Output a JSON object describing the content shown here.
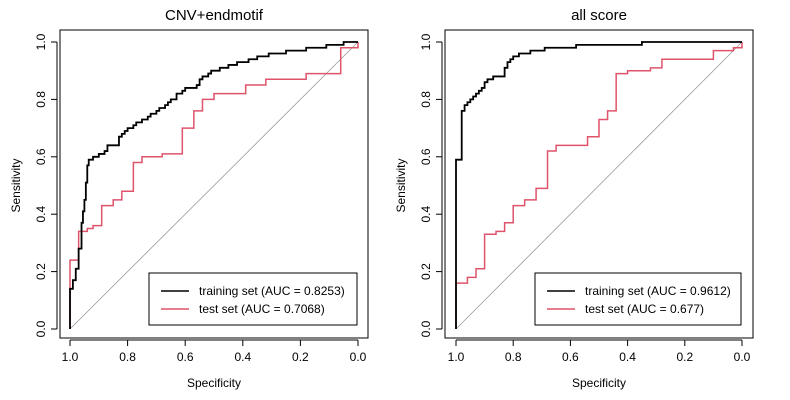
{
  "chart_data": [
    {
      "type": "line",
      "title": "CNV+endmotif",
      "xlabel": "Specificity",
      "ylabel": "Sensitivity",
      "xlim": [
        1.0,
        0.0
      ],
      "ylim": [
        0.0,
        1.0
      ],
      "x_reversed": true,
      "xticks": [
        "1.0",
        "0.8",
        "0.6",
        "0.4",
        "0.2",
        "0.0"
      ],
      "yticks": [
        "0.0",
        "0.2",
        "0.4",
        "0.6",
        "0.8",
        "1.0"
      ],
      "legend_position": "bottom-right",
      "diagonal_reference": true,
      "series": [
        {
          "name": "training set (AUC = 0.8253)",
          "color": "#000000",
          "points": [
            [
              1.0,
              0.0
            ],
            [
              1.0,
              0.14
            ],
            [
              0.99,
              0.14
            ],
            [
              0.99,
              0.17
            ],
            [
              0.98,
              0.17
            ],
            [
              0.98,
              0.21
            ],
            [
              0.97,
              0.21
            ],
            [
              0.97,
              0.28
            ],
            [
              0.96,
              0.28
            ],
            [
              0.96,
              0.37
            ],
            [
              0.955,
              0.37
            ],
            [
              0.955,
              0.41
            ],
            [
              0.95,
              0.41
            ],
            [
              0.95,
              0.45
            ],
            [
              0.945,
              0.45
            ],
            [
              0.945,
              0.51
            ],
            [
              0.94,
              0.51
            ],
            [
              0.94,
              0.57
            ],
            [
              0.935,
              0.57
            ],
            [
              0.935,
              0.59
            ],
            [
              0.92,
              0.59
            ],
            [
              0.92,
              0.6
            ],
            [
              0.9,
              0.6
            ],
            [
              0.9,
              0.61
            ],
            [
              0.88,
              0.61
            ],
            [
              0.88,
              0.62
            ],
            [
              0.87,
              0.62
            ],
            [
              0.87,
              0.64
            ],
            [
              0.83,
              0.64
            ],
            [
              0.83,
              0.67
            ],
            [
              0.82,
              0.67
            ],
            [
              0.82,
              0.68
            ],
            [
              0.81,
              0.68
            ],
            [
              0.81,
              0.69
            ],
            [
              0.8,
              0.69
            ],
            [
              0.8,
              0.7
            ],
            [
              0.78,
              0.7
            ],
            [
              0.78,
              0.71
            ],
            [
              0.77,
              0.71
            ],
            [
              0.77,
              0.72
            ],
            [
              0.75,
              0.72
            ],
            [
              0.75,
              0.73
            ],
            [
              0.73,
              0.73
            ],
            [
              0.73,
              0.74
            ],
            [
              0.72,
              0.74
            ],
            [
              0.72,
              0.75
            ],
            [
              0.7,
              0.75
            ],
            [
              0.7,
              0.76
            ],
            [
              0.69,
              0.76
            ],
            [
              0.69,
              0.77
            ],
            [
              0.67,
              0.77
            ],
            [
              0.67,
              0.78
            ],
            [
              0.66,
              0.78
            ],
            [
              0.66,
              0.79
            ],
            [
              0.65,
              0.79
            ],
            [
              0.65,
              0.8
            ],
            [
              0.63,
              0.8
            ],
            [
              0.63,
              0.82
            ],
            [
              0.61,
              0.82
            ],
            [
              0.61,
              0.83
            ],
            [
              0.6,
              0.83
            ],
            [
              0.6,
              0.84
            ],
            [
              0.56,
              0.84
            ],
            [
              0.56,
              0.85
            ],
            [
              0.55,
              0.85
            ],
            [
              0.55,
              0.87
            ],
            [
              0.54,
              0.87
            ],
            [
              0.54,
              0.88
            ],
            [
              0.52,
              0.88
            ],
            [
              0.52,
              0.89
            ],
            [
              0.51,
              0.89
            ],
            [
              0.51,
              0.9
            ],
            [
              0.48,
              0.9
            ],
            [
              0.48,
              0.91
            ],
            [
              0.45,
              0.91
            ],
            [
              0.45,
              0.92
            ],
            [
              0.42,
              0.92
            ],
            [
              0.42,
              0.93
            ],
            [
              0.38,
              0.93
            ],
            [
              0.38,
              0.94
            ],
            [
              0.35,
              0.94
            ],
            [
              0.35,
              0.95
            ],
            [
              0.31,
              0.95
            ],
            [
              0.31,
              0.96
            ],
            [
              0.25,
              0.96
            ],
            [
              0.25,
              0.97
            ],
            [
              0.18,
              0.97
            ],
            [
              0.18,
              0.98
            ],
            [
              0.11,
              0.98
            ],
            [
              0.11,
              0.99
            ],
            [
              0.05,
              0.99
            ],
            [
              0.05,
              1.0
            ],
            [
              0.0,
              1.0
            ]
          ]
        },
        {
          "name": "test set (AUC = 0.7068)",
          "color": "#DF536B",
          "points": [
            [
              1.0,
              0.0
            ],
            [
              1.0,
              0.24
            ],
            [
              0.97,
              0.24
            ],
            [
              0.97,
              0.34
            ],
            [
              0.94,
              0.34
            ],
            [
              0.94,
              0.35
            ],
            [
              0.92,
              0.35
            ],
            [
              0.92,
              0.36
            ],
            [
              0.89,
              0.36
            ],
            [
              0.89,
              0.43
            ],
            [
              0.85,
              0.43
            ],
            [
              0.85,
              0.45
            ],
            [
              0.82,
              0.45
            ],
            [
              0.82,
              0.48
            ],
            [
              0.78,
              0.48
            ],
            [
              0.78,
              0.58
            ],
            [
              0.75,
              0.58
            ],
            [
              0.75,
              0.6
            ],
            [
              0.68,
              0.6
            ],
            [
              0.68,
              0.61
            ],
            [
              0.61,
              0.61
            ],
            [
              0.61,
              0.7
            ],
            [
              0.57,
              0.7
            ],
            [
              0.57,
              0.76
            ],
            [
              0.54,
              0.76
            ],
            [
              0.54,
              0.8
            ],
            [
              0.5,
              0.8
            ],
            [
              0.5,
              0.82
            ],
            [
              0.39,
              0.82
            ],
            [
              0.39,
              0.85
            ],
            [
              0.32,
              0.85
            ],
            [
              0.32,
              0.87
            ],
            [
              0.18,
              0.87
            ],
            [
              0.18,
              0.89
            ],
            [
              0.06,
              0.89
            ],
            [
              0.06,
              0.98
            ],
            [
              0.0,
              0.98
            ],
            [
              0.0,
              1.0
            ]
          ]
        }
      ]
    },
    {
      "type": "line",
      "title": "all score",
      "xlabel": "Specificity",
      "ylabel": "Sensitivity",
      "xlim": [
        1.0,
        0.0
      ],
      "ylim": [
        0.0,
        1.0
      ],
      "x_reversed": true,
      "xticks": [
        "1.0",
        "0.8",
        "0.6",
        "0.4",
        "0.2",
        "0.0"
      ],
      "yticks": [
        "0.0",
        "0.2",
        "0.4",
        "0.6",
        "0.8",
        "1.0"
      ],
      "legend_position": "bottom-right",
      "diagonal_reference": true,
      "series": [
        {
          "name": "training set (AUC = 0.9612)",
          "color": "#000000",
          "points": [
            [
              1.0,
              0.0
            ],
            [
              1.0,
              0.59
            ],
            [
              0.98,
              0.59
            ],
            [
              0.98,
              0.76
            ],
            [
              0.97,
              0.76
            ],
            [
              0.97,
              0.78
            ],
            [
              0.96,
              0.78
            ],
            [
              0.96,
              0.79
            ],
            [
              0.95,
              0.79
            ],
            [
              0.95,
              0.8
            ],
            [
              0.94,
              0.8
            ],
            [
              0.94,
              0.81
            ],
            [
              0.93,
              0.81
            ],
            [
              0.93,
              0.82
            ],
            [
              0.92,
              0.82
            ],
            [
              0.92,
              0.83
            ],
            [
              0.91,
              0.83
            ],
            [
              0.91,
              0.84
            ],
            [
              0.9,
              0.84
            ],
            [
              0.9,
              0.86
            ],
            [
              0.89,
              0.86
            ],
            [
              0.89,
              0.87
            ],
            [
              0.87,
              0.87
            ],
            [
              0.87,
              0.88
            ],
            [
              0.83,
              0.88
            ],
            [
              0.83,
              0.91
            ],
            [
              0.82,
              0.91
            ],
            [
              0.82,
              0.93
            ],
            [
              0.81,
              0.93
            ],
            [
              0.81,
              0.94
            ],
            [
              0.8,
              0.94
            ],
            [
              0.8,
              0.95
            ],
            [
              0.78,
              0.95
            ],
            [
              0.78,
              0.96
            ],
            [
              0.74,
              0.96
            ],
            [
              0.74,
              0.97
            ],
            [
              0.69,
              0.97
            ],
            [
              0.69,
              0.98
            ],
            [
              0.58,
              0.98
            ],
            [
              0.58,
              0.99
            ],
            [
              0.35,
              0.99
            ],
            [
              0.35,
              1.0
            ],
            [
              0.0,
              1.0
            ]
          ]
        },
        {
          "name": "test set (AUC = 0.677)",
          "color": "#DF536B",
          "points": [
            [
              1.0,
              0.0
            ],
            [
              1.0,
              0.16
            ],
            [
              0.96,
              0.16
            ],
            [
              0.96,
              0.18
            ],
            [
              0.93,
              0.18
            ],
            [
              0.93,
              0.21
            ],
            [
              0.9,
              0.21
            ],
            [
              0.9,
              0.33
            ],
            [
              0.86,
              0.33
            ],
            [
              0.86,
              0.34
            ],
            [
              0.83,
              0.34
            ],
            [
              0.83,
              0.37
            ],
            [
              0.8,
              0.37
            ],
            [
              0.8,
              0.43
            ],
            [
              0.76,
              0.43
            ],
            [
              0.76,
              0.45
            ],
            [
              0.72,
              0.45
            ],
            [
              0.72,
              0.49
            ],
            [
              0.68,
              0.49
            ],
            [
              0.68,
              0.62
            ],
            [
              0.65,
              0.62
            ],
            [
              0.65,
              0.64
            ],
            [
              0.54,
              0.64
            ],
            [
              0.54,
              0.67
            ],
            [
              0.5,
              0.67
            ],
            [
              0.5,
              0.73
            ],
            [
              0.47,
              0.73
            ],
            [
              0.47,
              0.76
            ],
            [
              0.44,
              0.76
            ],
            [
              0.44,
              0.89
            ],
            [
              0.4,
              0.89
            ],
            [
              0.4,
              0.9
            ],
            [
              0.32,
              0.9
            ],
            [
              0.32,
              0.91
            ],
            [
              0.28,
              0.91
            ],
            [
              0.28,
              0.94
            ],
            [
              0.1,
              0.94
            ],
            [
              0.1,
              0.97
            ],
            [
              0.03,
              0.97
            ],
            [
              0.03,
              0.98
            ],
            [
              0.0,
              0.98
            ],
            [
              0.0,
              1.0
            ]
          ]
        }
      ]
    }
  ]
}
